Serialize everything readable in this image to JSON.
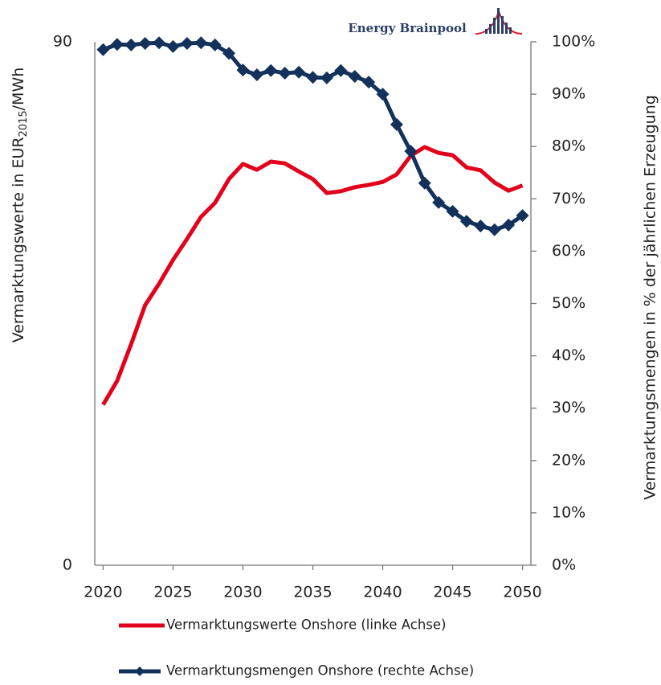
{
  "chart_data": {
    "type": "line",
    "brand": "Energy Brainpool",
    "y_label": [
      "Vermarktungswerte in EUR",
      "2015",
      "/MWh"
    ],
    "y2_label": "Vermarktungsmengen in % der jährlichen Erzeugung",
    "x": [
      2020,
      2021,
      2022,
      2023,
      2024,
      2025,
      2026,
      2027,
      2028,
      2029,
      2030,
      2031,
      2032,
      2033,
      2034,
      2035,
      2036,
      2037,
      2038,
      2039,
      2040,
      2041,
      2042,
      2043,
      2044,
      2045,
      2046,
      2047,
      2048,
      2049,
      2050
    ],
    "xlim": [
      2019.4,
      2050.6
    ],
    "xticks": [
      2020,
      2025,
      2030,
      2035,
      2040,
      2045,
      2050
    ],
    "ylim": [
      0,
      90
    ],
    "yticks": [
      0,
      90
    ],
    "y2lim": [
      0,
      100
    ],
    "y2ticks": [
      {
        "value": 0,
        "label": "0%"
      },
      {
        "value": 10,
        "label": "10%"
      },
      {
        "value": 20,
        "label": "20%"
      },
      {
        "value": 30,
        "label": "30%"
      },
      {
        "value": 40,
        "label": "40%"
      },
      {
        "value": 50,
        "label": "50%"
      },
      {
        "value": 60,
        "label": "60%"
      },
      {
        "value": 70,
        "label": "70%"
      },
      {
        "value": 80,
        "label": "80%"
      },
      {
        "value": 90,
        "label": "90%"
      },
      {
        "value": 100,
        "label": "100%"
      }
    ],
    "series": [
      {
        "name": "Vermarktungswerte Onshore (linke Achse)",
        "color": "#e2001a",
        "marker": false,
        "values": [
          27.6,
          31.7,
          38.0,
          44.7,
          48.4,
          52.5,
          56.1,
          59.9,
          62.3,
          66.4,
          69.0,
          68.0,
          69.4,
          69.1,
          67.7,
          66.4,
          64.0,
          64.3,
          65.0,
          65.4,
          65.9,
          67.2,
          70.4,
          71.9,
          70.9,
          70.5,
          68.4,
          67.9,
          65.8,
          64.4,
          65.3
        ]
      },
      {
        "name": "Vermarktungsmengen Onshore (rechte Achse)",
        "color": "#12325c",
        "marker": true,
        "axis": "y2",
        "values": [
          98.5,
          99.5,
          99.4,
          99.7,
          99.8,
          99.1,
          99.7,
          99.8,
          99.4,
          97.8,
          94.6,
          93.7,
          94.5,
          94.0,
          94.2,
          93.2,
          93.1,
          94.5,
          93.4,
          92.3,
          90.0,
          84.2,
          79.1,
          73.0,
          69.3,
          67.6,
          65.7,
          64.8,
          64.1,
          65.0,
          66.8
        ]
      }
    ]
  }
}
